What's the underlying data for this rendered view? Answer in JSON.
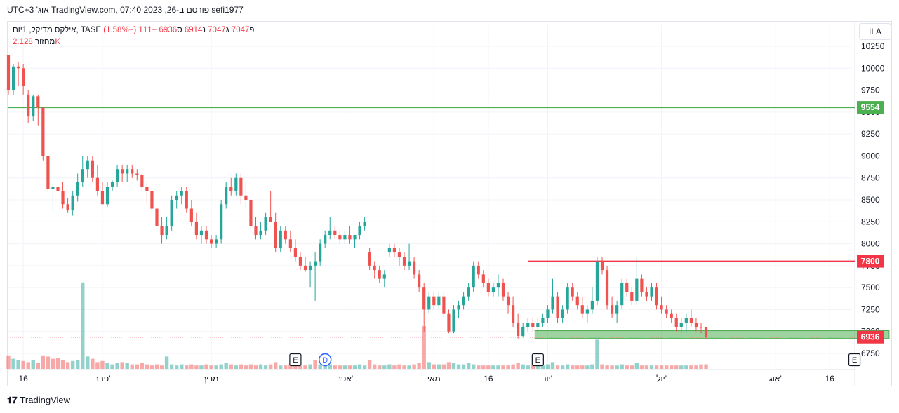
{
  "header": {
    "title": "sefi1977 פורסם ב-TradingView.com, 07:40 2023 ,26 אוג' UTC+3"
  },
  "legend": {
    "symbol": "אילקס מדיקל, 1יום, TASE",
    "open_label": "פ",
    "open": "7047",
    "high_label": "ג",
    "high": "7047",
    "low_label": "נ",
    "low": "6914",
    "close_label": "ס",
    "close": "6936",
    "change": "−111 (−1.58%)",
    "volume_label": "מחזור",
    "volume": "2.128K"
  },
  "currency_button": "ILA",
  "footer": {
    "brand": "TradingView"
  },
  "colors": {
    "up": "#26a69a",
    "down": "#ef5350",
    "support": "#4caf50",
    "resistance": "#f23645",
    "volume_up": "#26a69a",
    "volume_down": "#ef5350"
  },
  "chart_data": {
    "type": "candlestick",
    "ylim": [
      6600,
      10400
    ],
    "y_ticks": [
      6750,
      7000,
      7250,
      7500,
      7750,
      8000,
      8250,
      8500,
      8750,
      9000,
      9250,
      9500,
      9750,
      10000,
      10250
    ],
    "x_tick_labels": [
      {
        "label": "16",
        "index": 3
      },
      {
        "label": "פבר'",
        "index": 19
      },
      {
        "label": "מרץ",
        "index": 41
      },
      {
        "label": "אפר'",
        "index": 68
      },
      {
        "label": "מאי",
        "index": 86
      },
      {
        "label": "16",
        "index": 97
      },
      {
        "label": "יונ'",
        "index": 109
      },
      {
        "label": "יול'",
        "index": 132
      },
      {
        "label": "אוג'",
        "index": 155
      },
      {
        "label": "16",
        "index": 166
      }
    ],
    "horizontal_lines": [
      {
        "value": 9554,
        "color": "#4caf50",
        "label": "9554"
      },
      {
        "value": 7800,
        "color": "#f23645",
        "label": "7800",
        "start_index": 105
      }
    ],
    "zone": {
      "low": 6920,
      "high": 7010,
      "start_index": 107,
      "end_index": 178
    },
    "last_price": {
      "value": 6936,
      "label": "6936"
    },
    "events": [
      {
        "label": "E",
        "index": 58
      },
      {
        "label": "D",
        "index": 64
      },
      {
        "label": "E",
        "index": 107
      },
      {
        "label": "E",
        "index": 171
      }
    ],
    "candles": [
      [
        10150,
        10150,
        9700,
        9750
      ],
      [
        9750,
        10050,
        9700,
        10020
      ],
      [
        10020,
        10070,
        9800,
        10000
      ],
      [
        10000,
        10050,
        9700,
        9800
      ],
      [
        9700,
        9750,
        9380,
        9450
      ],
      [
        9450,
        9700,
        9400,
        9680
      ],
      [
        9680,
        9700,
        9350,
        9550
      ],
      [
        9550,
        9560,
        8950,
        9000
      ],
      [
        9000,
        9000,
        8600,
        8620
      ],
      [
        8620,
        8700,
        8350,
        8650
      ],
      [
        8650,
        8750,
        8450,
        8600
      ],
      [
        8600,
        8700,
        8400,
        8450
      ],
      [
        8450,
        8520,
        8350,
        8380
      ],
      [
        8380,
        8600,
        8320,
        8550
      ],
      [
        8550,
        8800,
        8480,
        8700
      ],
      [
        8700,
        9000,
        8650,
        8850
      ],
      [
        8850,
        9000,
        8750,
        8950
      ],
      [
        8950,
        9000,
        8700,
        8750
      ],
      [
        8750,
        8900,
        8550,
        8600
      ],
      [
        8600,
        8700,
        8450,
        8450
      ],
      [
        8450,
        8700,
        8420,
        8650
      ],
      [
        8650,
        8720,
        8600,
        8700
      ],
      [
        8700,
        8900,
        8650,
        8850
      ],
      [
        8850,
        8900,
        8700,
        8800
      ],
      [
        8800,
        8900,
        8700,
        8850
      ],
      [
        8850,
        8900,
        8750,
        8800
      ],
      [
        8800,
        8850,
        8720,
        8780
      ],
      [
        8780,
        8800,
        8600,
        8650
      ],
      [
        8650,
        8700,
        8450,
        8600
      ],
      [
        8600,
        8650,
        8350,
        8400
      ],
      [
        8400,
        8500,
        8100,
        8200
      ],
      [
        8200,
        8300,
        8000,
        8100
      ],
      [
        8100,
        8300,
        8050,
        8200
      ],
      [
        8200,
        8550,
        8150,
        8500
      ],
      [
        8500,
        8600,
        8400,
        8550
      ],
      [
        8550,
        8650,
        8450,
        8600
      ],
      [
        8600,
        8650,
        8350,
        8400
      ],
      [
        8400,
        8500,
        8200,
        8250
      ],
      [
        8250,
        8350,
        8050,
        8100
      ],
      [
        8100,
        8200,
        8000,
        8150
      ],
      [
        8150,
        8200,
        8000,
        8050
      ],
      [
        8050,
        8100,
        7950,
        8000
      ],
      [
        8000,
        8100,
        7950,
        8050
      ],
      [
        8050,
        8500,
        8000,
        8450
      ],
      [
        8450,
        8700,
        8400,
        8650
      ],
      [
        8650,
        8750,
        8550,
        8600
      ],
      [
        8600,
        8800,
        8550,
        8750
      ],
      [
        8750,
        8800,
        8450,
        8550
      ],
      [
        8550,
        8700,
        8400,
        8500
      ],
      [
        8500,
        8550,
        8150,
        8200
      ],
      [
        8200,
        8300,
        8050,
        8100
      ],
      [
        8100,
        8250,
        8050,
        8150
      ],
      [
        8150,
        8350,
        8100,
        8300
      ],
      [
        8300,
        8600,
        8250,
        8250
      ],
      [
        8250,
        8350,
        7900,
        7950
      ],
      [
        7950,
        8200,
        7900,
        8150
      ],
      [
        8150,
        8200,
        8000,
        8050
      ],
      [
        8050,
        8150,
        7900,
        7950
      ],
      [
        7950,
        8050,
        7800,
        7850
      ],
      [
        7850,
        7900,
        7700,
        7750
      ],
      [
        7750,
        7850,
        7680,
        7700
      ],
      [
        7700,
        7800,
        7500,
        7750
      ],
      [
        7750,
        7900,
        7350,
        7800
      ],
      [
        7800,
        8050,
        7750,
        8000
      ],
      [
        8000,
        8150,
        7950,
        8100
      ],
      [
        8100,
        8300,
        8050,
        8150
      ],
      [
        8150,
        8200,
        8050,
        8100
      ],
      [
        8100,
        8150,
        8000,
        8050
      ],
      [
        8050,
        8150,
        8000,
        8100
      ],
      [
        8100,
        8200,
        8000,
        8050
      ],
      [
        8050,
        8100,
        7950,
        8100
      ],
      [
        8100,
        8250,
        8050,
        8200
      ],
      [
        8200,
        8300,
        8150,
        8250
      ],
      [
        7900,
        7950,
        7700,
        7750
      ],
      [
        7750,
        7800,
        7600,
        7700
      ],
      [
        7700,
        7750,
        7550,
        7600
      ],
      [
        7600,
        7700,
        7500,
        7650
      ],
      [
        7900,
        8000,
        7850,
        7950
      ],
      [
        7950,
        8000,
        7850,
        7900
      ],
      [
        7900,
        7950,
        7750,
        7850
      ],
      [
        7850,
        7900,
        7700,
        7750
      ],
      [
        7750,
        8000,
        7700,
        7800
      ],
      [
        7800,
        7850,
        7600,
        7650
      ],
      [
        7650,
        7700,
        7450,
        7500
      ],
      [
        7500,
        7550,
        7000,
        7250
      ],
      [
        7250,
        7450,
        7200,
        7400
      ],
      [
        7400,
        7450,
        7250,
        7300
      ],
      [
        7300,
        7450,
        7250,
        7400
      ],
      [
        7400,
        7450,
        7150,
        7200
      ],
      [
        7200,
        7250,
        6980,
        7000
      ],
      [
        7000,
        7300,
        6980,
        7250
      ],
      [
        7250,
        7350,
        7150,
        7300
      ],
      [
        7300,
        7450,
        7250,
        7400
      ],
      [
        7400,
        7550,
        7350,
        7500
      ],
      [
        7500,
        7800,
        7450,
        7750
      ],
      [
        7750,
        7800,
        7600,
        7650
      ],
      [
        7650,
        7700,
        7500,
        7550
      ],
      [
        7550,
        7600,
        7400,
        7450
      ],
      [
        7450,
        7550,
        7400,
        7500
      ],
      [
        7500,
        7650,
        7400,
        7550
      ],
      [
        7550,
        7600,
        7350,
        7400
      ],
      [
        7400,
        7450,
        7200,
        7300
      ],
      [
        7300,
        7400,
        7050,
        7100
      ],
      [
        7100,
        7200,
        6920,
        6950
      ],
      [
        6950,
        7100,
        6930,
        7050
      ],
      [
        7050,
        7150,
        7000,
        7100
      ],
      [
        7100,
        7150,
        7000,
        7050
      ],
      [
        7050,
        7150,
        7000,
        7100
      ],
      [
        7100,
        7200,
        7050,
        7150
      ],
      [
        7150,
        7300,
        7100,
        7250
      ],
      [
        7250,
        7600,
        7200,
        7400
      ],
      [
        7400,
        7450,
        7100,
        7150
      ],
      [
        7150,
        7300,
        7100,
        7250
      ],
      [
        7250,
        7550,
        7200,
        7500
      ],
      [
        7500,
        7550,
        7350,
        7400
      ],
      [
        7400,
        7450,
        7250,
        7300
      ],
      [
        7300,
        7400,
        7150,
        7200
      ],
      [
        7200,
        7300,
        7100,
        7250
      ],
      [
        7250,
        7500,
        7200,
        7350
      ],
      [
        7350,
        7850,
        7300,
        7800
      ],
      [
        7800,
        7850,
        7650,
        7700
      ],
      [
        7700,
        7750,
        7250,
        7300
      ],
      [
        7300,
        7400,
        7150,
        7200
      ],
      [
        7200,
        7350,
        7100,
        7300
      ],
      [
        7300,
        7600,
        7250,
        7550
      ],
      [
        7550,
        7600,
        7400,
        7450
      ],
      [
        7450,
        7500,
        7300,
        7350
      ],
      [
        7350,
        7850,
        7300,
        7600
      ],
      [
        7600,
        7650,
        7400,
        7450
      ],
      [
        7450,
        7500,
        7350,
        7400
      ],
      [
        7400,
        7550,
        7350,
        7500
      ],
      [
        7500,
        7550,
        7250,
        7300
      ],
      [
        7300,
        7400,
        7200,
        7250
      ],
      [
        7250,
        7300,
        7150,
        7200
      ],
      [
        7200,
        7250,
        7100,
        7150
      ],
      [
        7150,
        7200,
        7000,
        7050
      ],
      [
        7050,
        7150,
        6980,
        7100
      ],
      [
        7100,
        7200,
        7000,
        7150
      ],
      [
        7150,
        7250,
        7050,
        7100
      ],
      [
        7100,
        7150,
        7000,
        7050
      ],
      [
        7050,
        7100,
        6980,
        7047
      ],
      [
        7047,
        7047,
        6914,
        6936
      ]
    ],
    "volumes": [
      [
        120,
        0
      ],
      [
        90,
        1
      ],
      [
        80,
        1
      ],
      [
        70,
        0
      ],
      [
        60,
        0
      ],
      [
        80,
        1
      ],
      [
        50,
        0
      ],
      [
        120,
        0
      ],
      [
        110,
        0
      ],
      [
        90,
        0
      ],
      [
        100,
        0
      ],
      [
        80,
        0
      ],
      [
        60,
        0
      ],
      [
        70,
        1
      ],
      [
        80,
        1
      ],
      [
        770,
        1
      ],
      [
        110,
        1
      ],
      [
        90,
        0
      ],
      [
        60,
        0
      ],
      [
        70,
        0
      ],
      [
        50,
        1
      ],
      [
        40,
        1
      ],
      [
        50,
        1
      ],
      [
        60,
        0
      ],
      [
        50,
        1
      ],
      [
        40,
        0
      ],
      [
        40,
        0
      ],
      [
        50,
        0
      ],
      [
        40,
        0
      ],
      [
        30,
        0
      ],
      [
        40,
        0
      ],
      [
        30,
        0
      ],
      [
        110,
        1
      ],
      [
        40,
        1
      ],
      [
        30,
        1
      ],
      [
        40,
        1
      ],
      [
        30,
        0
      ],
      [
        40,
        0
      ],
      [
        30,
        0
      ],
      [
        30,
        1
      ],
      [
        40,
        0
      ],
      [
        30,
        0
      ],
      [
        30,
        1
      ],
      [
        40,
        1
      ],
      [
        50,
        1
      ],
      [
        40,
        0
      ],
      [
        30,
        1
      ],
      [
        40,
        0
      ],
      [
        30,
        0
      ],
      [
        40,
        0
      ],
      [
        30,
        0
      ],
      [
        40,
        1
      ],
      [
        30,
        1
      ],
      [
        40,
        0
      ],
      [
        60,
        0
      ],
      [
        30,
        1
      ],
      [
        30,
        0
      ],
      [
        40,
        0
      ],
      [
        30,
        0
      ],
      [
        30,
        0
      ],
      [
        30,
        0
      ],
      [
        40,
        1
      ],
      [
        80,
        0
      ],
      [
        40,
        1
      ],
      [
        30,
        1
      ],
      [
        40,
        1
      ],
      [
        30,
        0
      ],
      [
        30,
        0
      ],
      [
        30,
        1
      ],
      [
        30,
        0
      ],
      [
        30,
        1
      ],
      [
        40,
        1
      ],
      [
        30,
        1
      ],
      [
        80,
        0
      ],
      [
        40,
        0
      ],
      [
        30,
        0
      ],
      [
        30,
        1
      ],
      [
        40,
        1
      ],
      [
        30,
        0
      ],
      [
        40,
        0
      ],
      [
        30,
        0
      ],
      [
        30,
        1
      ],
      [
        40,
        0
      ],
      [
        50,
        0
      ],
      [
        380,
        0
      ],
      [
        60,
        1
      ],
      [
        40,
        0
      ],
      [
        40,
        1
      ],
      [
        40,
        0
      ],
      [
        60,
        0
      ],
      [
        50,
        1
      ],
      [
        40,
        1
      ],
      [
        40,
        1
      ],
      [
        50,
        1
      ],
      [
        40,
        1
      ],
      [
        30,
        0
      ],
      [
        30,
        0
      ],
      [
        30,
        0
      ],
      [
        30,
        1
      ],
      [
        30,
        1
      ],
      [
        30,
        0
      ],
      [
        30,
        0
      ],
      [
        40,
        0
      ],
      [
        50,
        0
      ],
      [
        40,
        1
      ],
      [
        30,
        1
      ],
      [
        30,
        0
      ],
      [
        30,
        1
      ],
      [
        30,
        1
      ],
      [
        40,
        1
      ],
      [
        60,
        1
      ],
      [
        30,
        0
      ],
      [
        30,
        1
      ],
      [
        40,
        1
      ],
      [
        30,
        0
      ],
      [
        30,
        0
      ],
      [
        30,
        0
      ],
      [
        30,
        1
      ],
      [
        40,
        1
      ],
      [
        260,
        1
      ],
      [
        40,
        0
      ],
      [
        30,
        0
      ],
      [
        30,
        0
      ],
      [
        30,
        1
      ],
      [
        40,
        1
      ],
      [
        30,
        0
      ],
      [
        30,
        0
      ],
      [
        50,
        1
      ],
      [
        30,
        0
      ],
      [
        30,
        0
      ],
      [
        30,
        1
      ],
      [
        30,
        0
      ],
      [
        30,
        0
      ],
      [
        30,
        0
      ],
      [
        30,
        0
      ],
      [
        30,
        0
      ],
      [
        30,
        1
      ],
      [
        30,
        1
      ],
      [
        30,
        0
      ],
      [
        30,
        0
      ],
      [
        40,
        0
      ],
      [
        40,
        0
      ]
    ]
  }
}
